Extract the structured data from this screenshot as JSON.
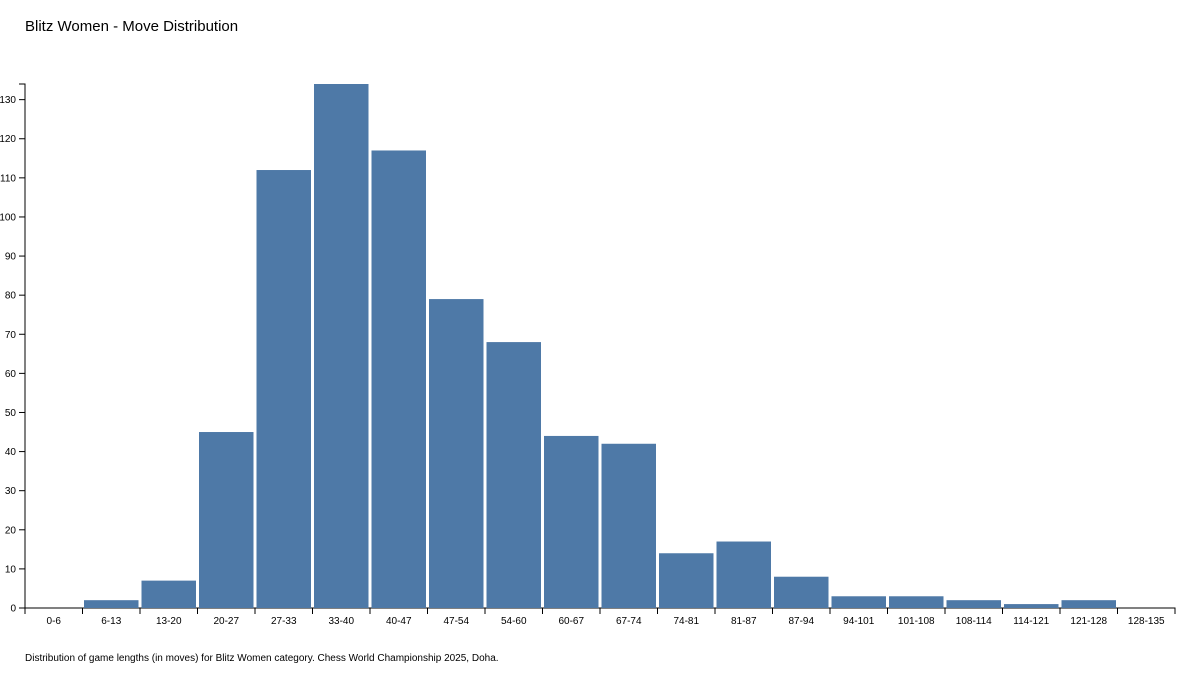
{
  "chart_data": {
    "type": "bar",
    "title": "Blitz Women - Move Distribution",
    "caption": "Distribution of game lengths (in moves) for Blitz Women category. Chess World Championship 2025, Doha.",
    "categories": [
      "0-6",
      "6-13",
      "13-20",
      "20-27",
      "27-33",
      "33-40",
      "40-47",
      "47-54",
      "54-60",
      "60-67",
      "67-74",
      "74-81",
      "81-87",
      "87-94",
      "94-101",
      "101-108",
      "108-114",
      "114-121",
      "121-128",
      "128-135"
    ],
    "values": [
      0,
      2,
      7,
      45,
      112,
      134,
      117,
      79,
      68,
      44,
      42,
      14,
      17,
      8,
      3,
      3,
      2,
      1,
      2,
      0
    ],
    "color": "#4e79a7",
    "ylim": [
      0,
      134
    ],
    "yticks": [
      0,
      10,
      20,
      30,
      40,
      50,
      60,
      70,
      80,
      90,
      100,
      110,
      120,
      130
    ]
  }
}
